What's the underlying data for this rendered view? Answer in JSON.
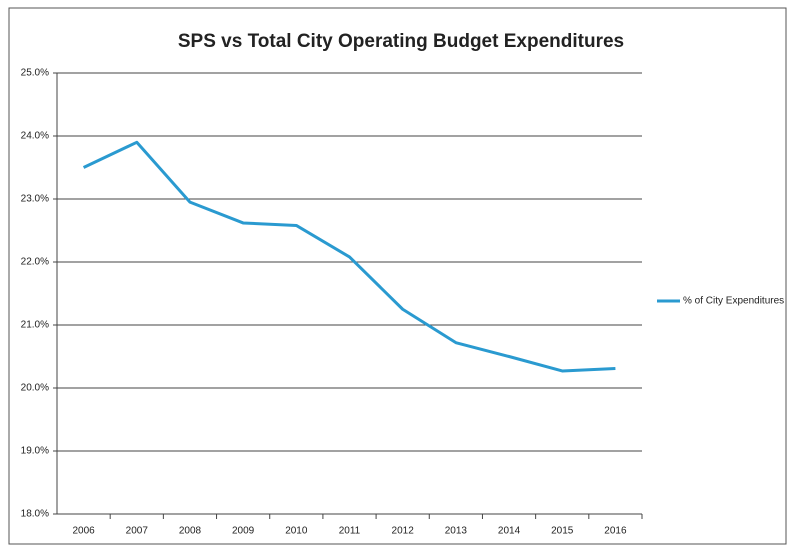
{
  "chart_data": {
    "type": "line",
    "title": "SPS vs Total City Operating Budget Expenditures",
    "categories": [
      "2006",
      "2007",
      "2008",
      "2009",
      "2010",
      "2011",
      "2012",
      "2013",
      "2014",
      "2015",
      "2016"
    ],
    "series": [
      {
        "name": "% of City Expenditures",
        "color": "#2a9ad0",
        "values": [
          23.5,
          23.9,
          22.95,
          22.62,
          22.58,
          22.08,
          21.25,
          20.72,
          20.5,
          20.27,
          20.31
        ]
      }
    ],
    "ylim": [
      18,
      25
    ],
    "yticks": [
      {
        "value": 18,
        "label": "18.0%"
      },
      {
        "value": 19,
        "label": "19.0%"
      },
      {
        "value": 20,
        "label": "20.0%"
      },
      {
        "value": 21,
        "label": "21.0%"
      },
      {
        "value": 22,
        "label": "22.0%"
      },
      {
        "value": 23,
        "label": "23.0%"
      },
      {
        "value": 24,
        "label": "24.0%"
      },
      {
        "value": 25,
        "label": "25.0%"
      }
    ],
    "grid": true,
    "legend": "right"
  }
}
